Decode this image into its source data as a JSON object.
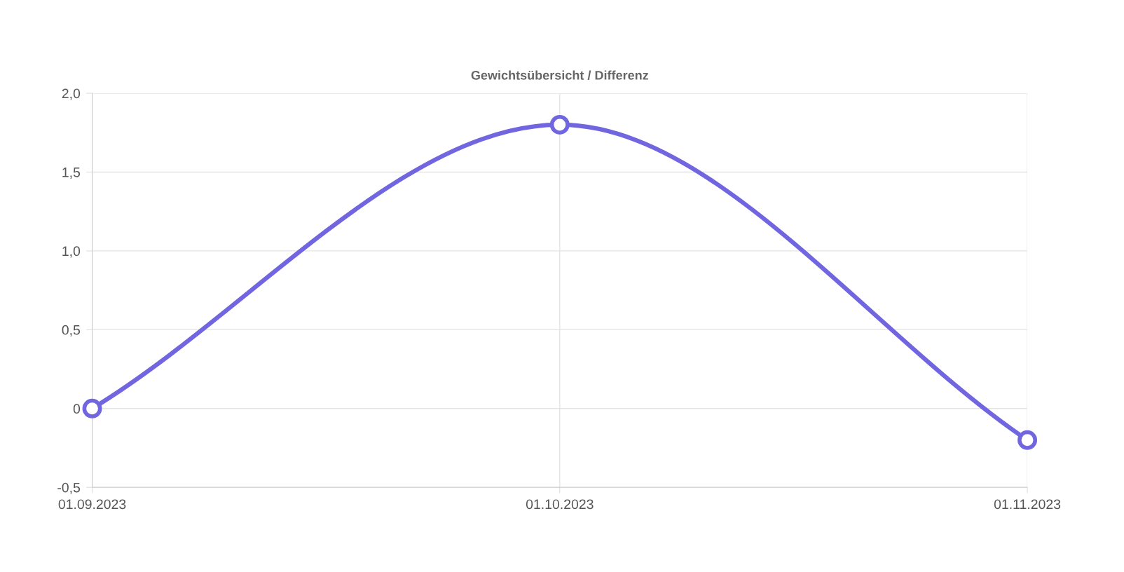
{
  "chart_data": {
    "type": "line",
    "title": "Gewichtsübersicht / Differenz",
    "categories": [
      "01.09.2023",
      "01.10.2023",
      "01.11.2023"
    ],
    "series": [
      {
        "color": "#7166e0",
        "values": [
          0,
          1.8,
          -0.2
        ]
      }
    ],
    "ylim": [
      -0.5,
      2.0
    ],
    "yticks": [
      {
        "value": -0.5,
        "label": "-0,5"
      },
      0,
      {
        "value": 0.5,
        "label": "0,5"
      },
      {
        "value": 1.0,
        "label": "1,0"
      },
      {
        "value": 1.5,
        "label": "1,5"
      },
      {
        "value": 2.0,
        "label": "2,0"
      }
    ],
    "grid": true,
    "marker": "circle",
    "line_style": "solid"
  }
}
